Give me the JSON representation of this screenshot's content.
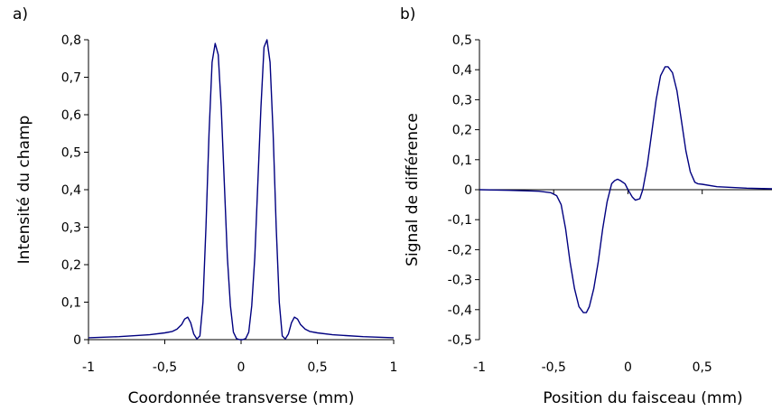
{
  "chart_data": [
    {
      "type": "line",
      "panel_label": "a)",
      "xlabel": "Coordonnée transverse (mm)",
      "ylabel": "Intensité du champ",
      "xlim": [
        -1,
        1
      ],
      "ylim": [
        0,
        0.8
      ],
      "x_ticks": [
        -1,
        -0.5,
        0,
        0.5,
        1
      ],
      "x_tick_labels": [
        "-1",
        "-0,5",
        "0",
        "0,5",
        "1"
      ],
      "y_ticks": [
        0,
        0.1,
        0.2,
        0.3,
        0.4,
        0.5,
        0.6,
        0.7,
        0.8
      ],
      "y_tick_labels": [
        "0",
        "0,1",
        "0,2",
        "0,3",
        "0,4",
        "0,5",
        "0,6",
        "0,7",
        "0,8"
      ],
      "grid": false,
      "line_color": "#000080",
      "series": [
        {
          "x": [
            -1.0,
            -0.8,
            -0.6,
            -0.5,
            -0.45,
            -0.42,
            -0.39,
            -0.37,
            -0.35,
            -0.33,
            -0.31,
            -0.29,
            -0.27,
            -0.25,
            -0.23,
            -0.21,
            -0.19,
            -0.17,
            -0.15,
            -0.13,
            -0.11,
            -0.09,
            -0.07,
            -0.05,
            -0.03,
            -0.01,
            0.0,
            0.01,
            0.03,
            0.05,
            0.07,
            0.09,
            0.11,
            0.13,
            0.15,
            0.17,
            0.19,
            0.21,
            0.23,
            0.25,
            0.27,
            0.29,
            0.31,
            0.33,
            0.35,
            0.37,
            0.39,
            0.42,
            0.45,
            0.5,
            0.6,
            0.8,
            1.0
          ],
          "y": [
            0.005,
            0.008,
            0.013,
            0.018,
            0.022,
            0.028,
            0.04,
            0.055,
            0.06,
            0.045,
            0.015,
            0.002,
            0.01,
            0.1,
            0.3,
            0.55,
            0.74,
            0.79,
            0.76,
            0.62,
            0.42,
            0.22,
            0.09,
            0.02,
            0.003,
            0.0,
            0.0,
            0.0,
            0.003,
            0.02,
            0.09,
            0.22,
            0.42,
            0.62,
            0.78,
            0.8,
            0.74,
            0.55,
            0.3,
            0.1,
            0.01,
            0.002,
            0.015,
            0.045,
            0.06,
            0.055,
            0.04,
            0.028,
            0.022,
            0.018,
            0.013,
            0.008,
            0.005
          ]
        }
      ]
    },
    {
      "type": "line",
      "panel_label": "b)",
      "xlabel": "Position du faisceau (mm)",
      "ylabel": "Signal de différence",
      "xlim": [
        -1,
        0.97
      ],
      "ylim": [
        -0.5,
        0.5
      ],
      "x_ticks": [
        -1,
        -0.5,
        0,
        0.5
      ],
      "x_tick_labels": [
        "-1",
        "-0,5",
        "0",
        "0,5"
      ],
      "y_ticks": [
        -0.5,
        -0.4,
        -0.3,
        -0.2,
        -0.1,
        0,
        0.1,
        0.2,
        0.3,
        0.4,
        0.5
      ],
      "y_tick_labels": [
        "-0,5",
        "-0,4",
        "-0,3",
        "-0,2",
        "-0,1",
        "0",
        "0,1",
        "0,2",
        "0,3",
        "0,4",
        "0,5"
      ],
      "grid": false,
      "line_color": "#000080",
      "series": [
        {
          "x": [
            -1.0,
            -0.8,
            -0.6,
            -0.52,
            -0.48,
            -0.45,
            -0.42,
            -0.39,
            -0.36,
            -0.33,
            -0.3,
            -0.28,
            -0.26,
            -0.23,
            -0.2,
            -0.17,
            -0.14,
            -0.11,
            -0.09,
            -0.07,
            -0.05,
            -0.02,
            0.0,
            0.03,
            0.05,
            0.08,
            0.1,
            0.13,
            0.16,
            0.19,
            0.22,
            0.25,
            0.27,
            0.3,
            0.33,
            0.36,
            0.39,
            0.42,
            0.45,
            0.47,
            0.5,
            0.6,
            0.8,
            0.97
          ],
          "y": [
            0.0,
            -0.002,
            -0.005,
            -0.01,
            -0.02,
            -0.05,
            -0.13,
            -0.24,
            -0.33,
            -0.39,
            -0.41,
            -0.41,
            -0.39,
            -0.33,
            -0.24,
            -0.13,
            -0.04,
            0.02,
            0.03,
            0.035,
            0.03,
            0.02,
            0.0,
            -0.025,
            -0.035,
            -0.03,
            0.0,
            0.08,
            0.19,
            0.3,
            0.38,
            0.41,
            0.41,
            0.39,
            0.33,
            0.23,
            0.13,
            0.06,
            0.025,
            0.02,
            0.018,
            0.01,
            0.005,
            0.003
          ]
        }
      ]
    }
  ]
}
